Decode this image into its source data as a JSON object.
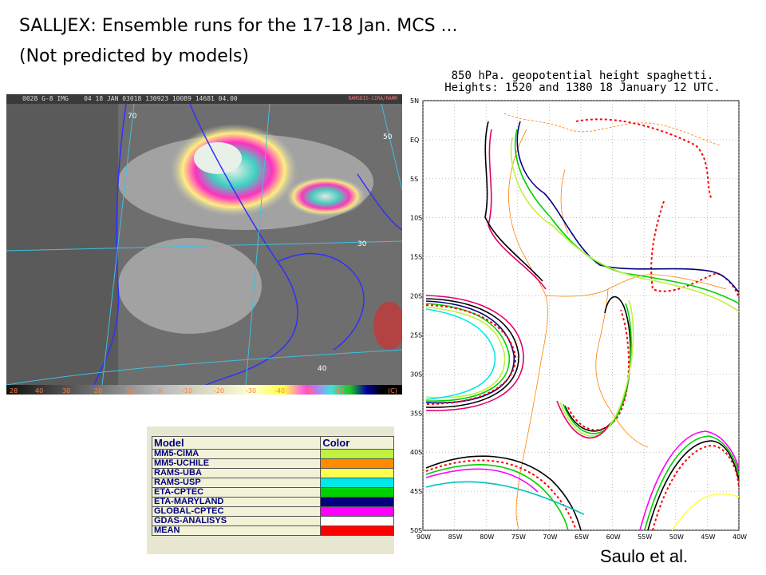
{
  "slide": {
    "title": "SALLJEX: Ensemble runs for the 17-18 Jan. MCS ...",
    "subtitle": "(Not predicted by models)",
    "credit": "Saulo et al."
  },
  "satellite": {
    "header": "0028 G-8 IMG    04 18 JAN 03018 130923 10089 14681 04.00",
    "header_tag": "RAMSDIS-CIRA/RAMM",
    "lat_labels": [
      "70",
      "50",
      "30",
      "40"
    ],
    "scale_labels": [
      "28",
      "40",
      "30",
      "20",
      "10",
      "0",
      "-10",
      "-20",
      "-30",
      "-40",
      "-50",
      "-60",
      "(C)"
    ]
  },
  "spaghetti": {
    "title_line1": "850 hPa. geopotential height spaghetti.",
    "title_line2": "Heights: 1520 and 1380 18 January 12 UTC.",
    "lat_ticks": [
      "5N",
      "EQ",
      "5S",
      "10S",
      "15S",
      "20S",
      "25S",
      "30S",
      "35S",
      "40S",
      "45S",
      "50S"
    ],
    "lon_ticks": [
      "90W",
      "85W",
      "80W",
      "75W",
      "70W",
      "65W",
      "60W",
      "55W",
      "50W",
      "45W",
      "40W"
    ]
  },
  "legend": {
    "header_model": "Model",
    "header_color": "Color",
    "rows": [
      {
        "model": "MM5-CIMA",
        "color": "#c0f040"
      },
      {
        "model": "MM5-UCHILE",
        "color": "#ff8c00"
      },
      {
        "model": "RAMS-UBA",
        "color": "#ffff50"
      },
      {
        "model": "RAMS-USP",
        "color": "#00e8e8"
      },
      {
        "model": "ETA-CPTEC",
        "color": "#00d000"
      },
      {
        "model": "ETA-MARYLAND",
        "color": "#000080"
      },
      {
        "model": "GLOBAL-CPTEC",
        "color": "#ff00ff"
      },
      {
        "model": "GDAS-ANALISYS",
        "color": "#ffffff"
      },
      {
        "model": "MEAN",
        "color": "#ff0000"
      }
    ]
  }
}
